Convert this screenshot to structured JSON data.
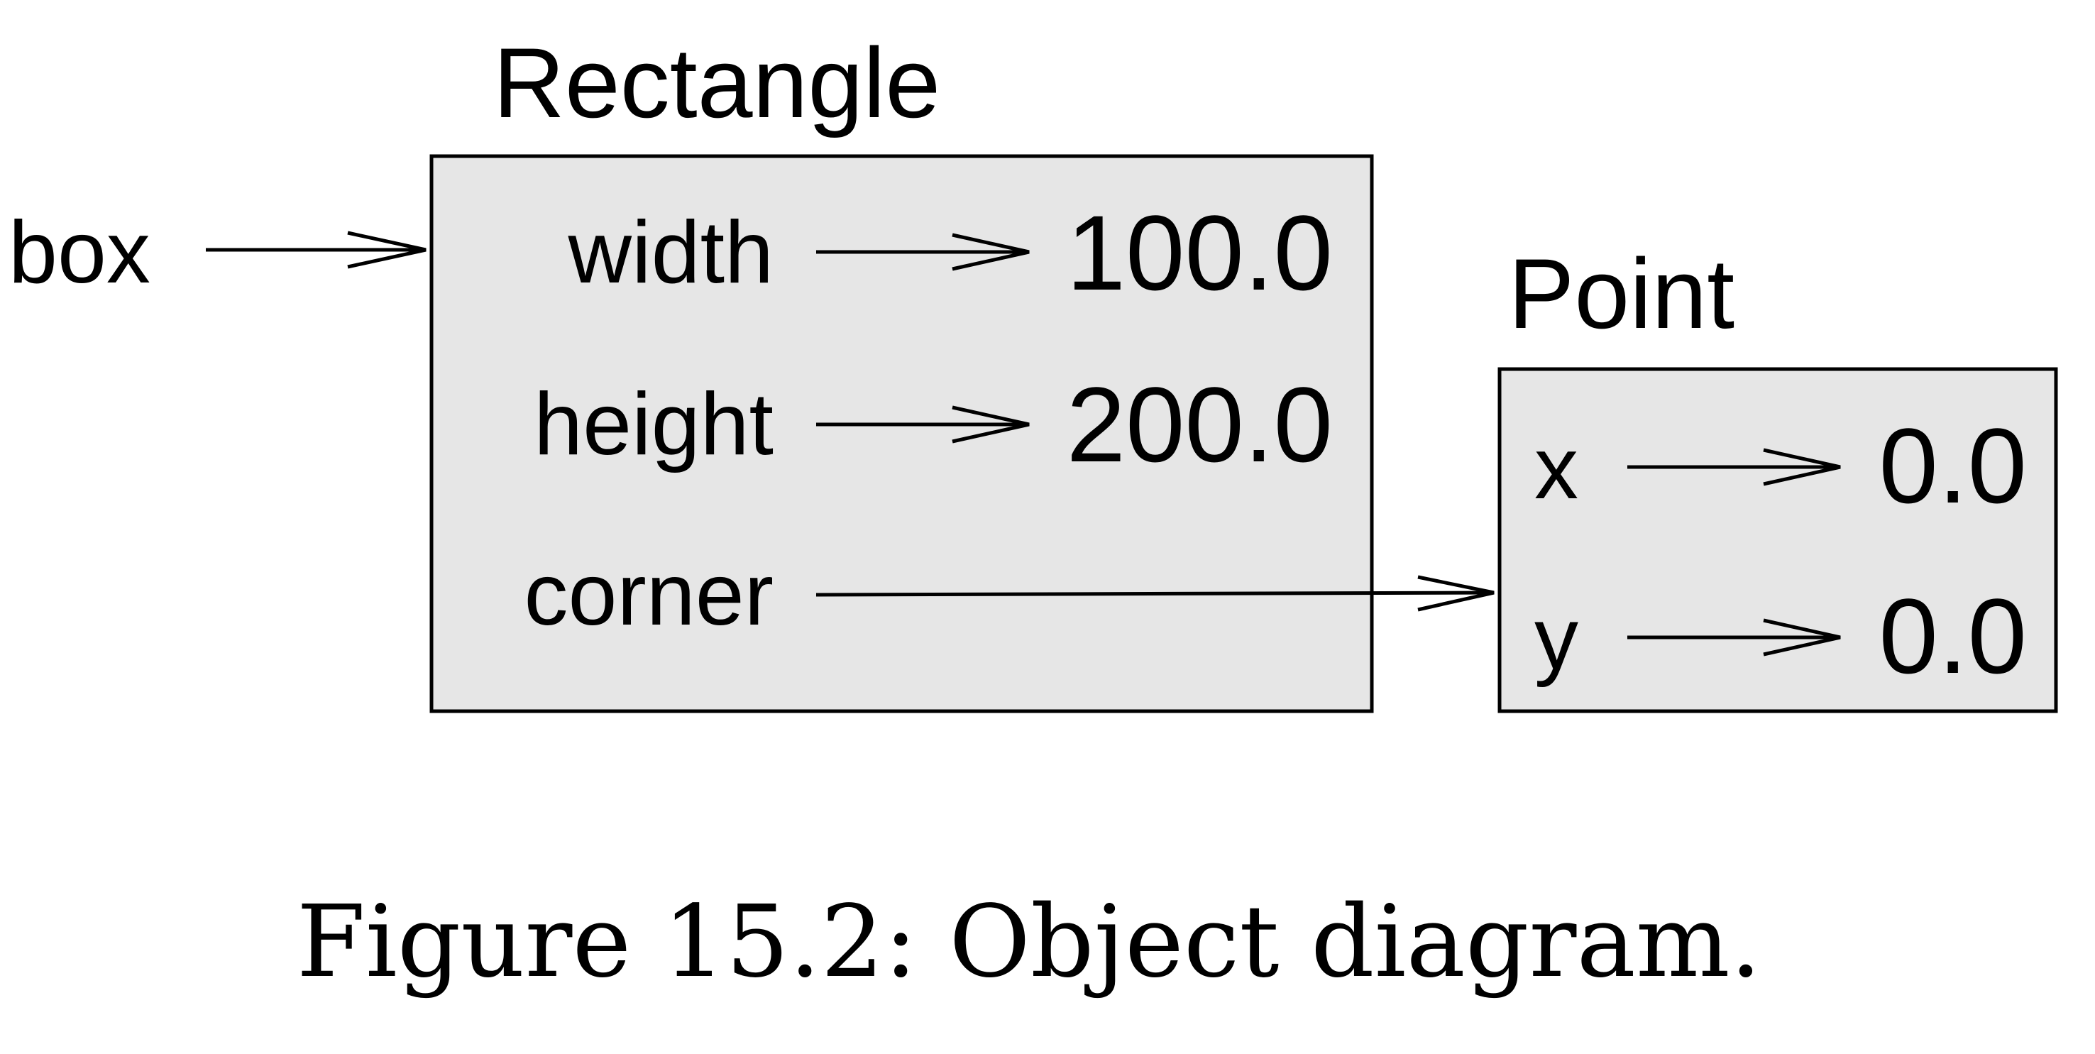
{
  "diagram": {
    "variable": "box",
    "box_fill": "#e6e6e6",
    "rectangle": {
      "class_name": "Rectangle",
      "attributes": [
        {
          "name": "width",
          "value": "100.0"
        },
        {
          "name": "height",
          "value": "200.0"
        },
        {
          "name": "corner",
          "value": ""
        }
      ]
    },
    "point": {
      "class_name": "Point",
      "attributes": [
        {
          "name": "x",
          "value": "0.0"
        },
        {
          "name": "y",
          "value": "0.0"
        }
      ]
    }
  },
  "caption": "Figure 15.2: Object diagram."
}
